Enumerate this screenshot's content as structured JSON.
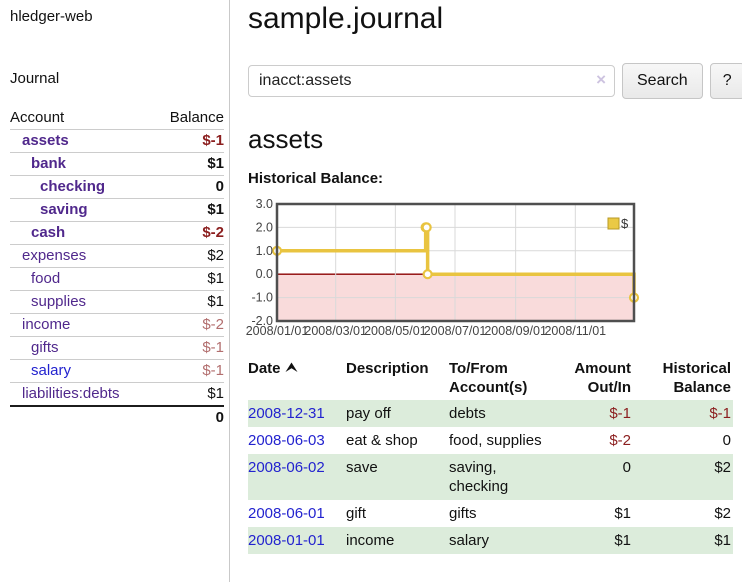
{
  "colors": {
    "link_purple": "#50288c",
    "link_blue": "#2323cf",
    "neg_strong": "#8b1e1e",
    "neg_soft": "#b26e6e",
    "text_dark": "#111111",
    "row_green": "#dcecdb",
    "chart_line": "#e9c440",
    "chart_marker_fill": "#ffffff",
    "chart_shade": "#f9dbdb",
    "zero_line": "#8b0000",
    "grid": "#d9d9d9",
    "frame": "#4f4f4f",
    "axis_text": "#444444",
    "legend_square_fill": "#eac945",
    "legend_square_border": "#b89a25"
  },
  "sidebar": {
    "app_title": "hledger-web",
    "journal_link": "Journal",
    "header": {
      "account": "Account",
      "balance": "Balance"
    },
    "accounts": [
      {
        "name": "assets",
        "indent": 1,
        "bold": true,
        "name_color": "purple",
        "balance": "$-1",
        "balance_color": "neg_strong"
      },
      {
        "name": "bank",
        "indent": 2,
        "bold": true,
        "name_color": "purple",
        "balance": "$1",
        "balance_color": "dark"
      },
      {
        "name": "checking",
        "indent": 3,
        "bold": true,
        "name_color": "purple",
        "balance": "0",
        "balance_color": "dark"
      },
      {
        "name": "saving",
        "indent": 3,
        "bold": true,
        "name_color": "purple",
        "balance": "$1",
        "balance_color": "dark"
      },
      {
        "name": "cash",
        "indent": 2,
        "bold": true,
        "name_color": "purple",
        "balance": "$-2",
        "balance_color": "neg_strong"
      },
      {
        "name": "expenses",
        "indent": 1,
        "bold": false,
        "name_color": "purple",
        "balance": "$2",
        "balance_color": "dark"
      },
      {
        "name": "food",
        "indent": 2,
        "bold": false,
        "name_color": "purple",
        "balance": "$1",
        "balance_color": "dark"
      },
      {
        "name": "supplies",
        "indent": 2,
        "bold": false,
        "name_color": "purple",
        "balance": "$1",
        "balance_color": "dark"
      },
      {
        "name": "income",
        "indent": 1,
        "bold": false,
        "name_color": "purple",
        "balance": "$-2",
        "balance_color": "neg_soft"
      },
      {
        "name": "gifts",
        "indent": 2,
        "bold": false,
        "name_color": "purple",
        "balance": "$-1",
        "balance_color": "neg_soft"
      },
      {
        "name": "salary",
        "indent": 2,
        "bold": false,
        "name_color": "blue",
        "balance": "$-1",
        "balance_color": "neg_soft"
      },
      {
        "name": "liabilities:debts",
        "indent": 1,
        "bold": false,
        "name_color": "purple",
        "balance": "$1",
        "balance_color": "dark"
      }
    ],
    "total": "0"
  },
  "main": {
    "title": "sample.journal",
    "search": {
      "value": "inacct:assets",
      "clear_icon": "×",
      "button_label": "Search",
      "help_label": "?"
    },
    "account_heading": "assets",
    "chart_heading": "Historical Balance:"
  },
  "chart_data": {
    "type": "line",
    "step": "after",
    "title": "Historical Balance:",
    "legend": {
      "label": "$",
      "position": "top-right"
    },
    "ylim": [
      -2,
      3
    ],
    "y_ticks": [
      3.0,
      2.0,
      1.0,
      0.0,
      -1.0,
      -2.0
    ],
    "x_range_days": 365,
    "x_ticks": [
      {
        "label": "2008/01/01",
        "day": 0
      },
      {
        "label": "2008/03/01",
        "day": 60
      },
      {
        "label": "2008/05/01",
        "day": 121
      },
      {
        "label": "2008/07/01",
        "day": 182
      },
      {
        "label": "2008/09/01",
        "day": 244
      },
      {
        "label": "2008/11/01",
        "day": 305
      }
    ],
    "series": [
      {
        "name": "$",
        "points": [
          {
            "date": "2008-01-01",
            "day": 0,
            "value": 1
          },
          {
            "date": "2008-06-01",
            "day": 152,
            "value": 2
          },
          {
            "date": "2008-06-02",
            "day": 153,
            "value": 2
          },
          {
            "date": "2008-06-03",
            "day": 154,
            "value": 0
          },
          {
            "date": "2008-12-31",
            "day": 365,
            "value": -1
          }
        ]
      }
    ],
    "shade_below_zero": true,
    "grid": true
  },
  "register": {
    "headers": {
      "date": "Date",
      "description": "Description",
      "accounts": "To/From Account(s)",
      "amount": "Amount Out/In",
      "balance": "Historical Balance"
    },
    "rows": [
      {
        "date": "2008-12-31",
        "description": "pay off",
        "accounts": "debts",
        "amount": "$-1",
        "amount_neg": true,
        "balance": "$-1",
        "balance_neg": true
      },
      {
        "date": "2008-06-03",
        "description": "eat & shop",
        "accounts": "food, supplies",
        "amount": "$-2",
        "amount_neg": true,
        "balance": "0",
        "balance_neg": false
      },
      {
        "date": "2008-06-02",
        "description": "save",
        "accounts": "saving, checking",
        "amount": "0",
        "amount_neg": false,
        "balance": "$2",
        "balance_neg": false
      },
      {
        "date": "2008-06-01",
        "description": "gift",
        "accounts": "gifts",
        "amount": "$1",
        "amount_neg": false,
        "balance": "$2",
        "balance_neg": false
      },
      {
        "date": "2008-01-01",
        "description": "income",
        "accounts": "salary",
        "amount": "$1",
        "amount_neg": false,
        "balance": "$1",
        "balance_neg": false
      }
    ]
  }
}
